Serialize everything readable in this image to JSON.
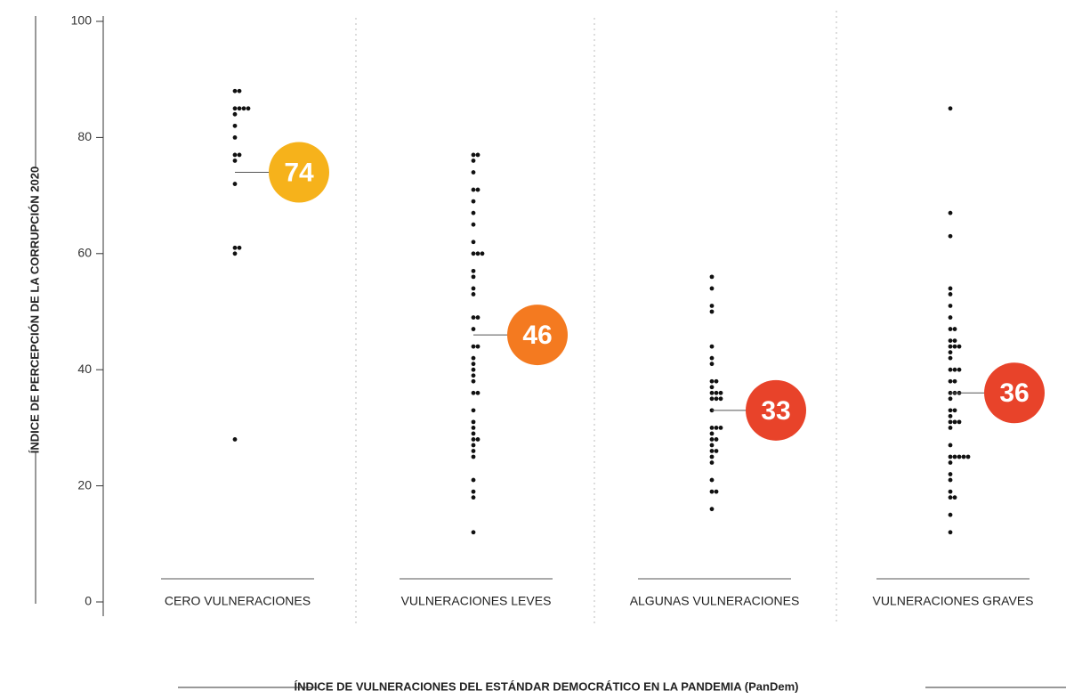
{
  "chart_data": {
    "type": "strip",
    "y_label": "ÍNDICE DE PERCEPCIÓN DE LA CORRUPCIÓN 2020",
    "x_label": "ÍNDICE DE VULNERACIONES DEL ESTÁNDAR DEMOCRÁTICO EN LA PANDEMIA (PanDem)",
    "categories": [
      "CERO VULNERACIONES",
      "VULNERACIONES LEVES",
      "ALGUNAS VULNERACIONES",
      "VULNERACIONES GRAVES"
    ],
    "points": [
      [
        88,
        88,
        85,
        85,
        85,
        85,
        84,
        82,
        80,
        77,
        77,
        76,
        72,
        61,
        61,
        60,
        28
      ],
      [
        77,
        77,
        76,
        74,
        71,
        71,
        69,
        67,
        65,
        62,
        60,
        60,
        60,
        57,
        56,
        54,
        53,
        49,
        49,
        47,
        44,
        44,
        42,
        41,
        40,
        39,
        38,
        36,
        36,
        33,
        31,
        30,
        29,
        28,
        28,
        27,
        26,
        25,
        21,
        19,
        18,
        12
      ],
      [
        56,
        54,
        51,
        50,
        44,
        42,
        41,
        38,
        38,
        37,
        36,
        36,
        36,
        35,
        35,
        35,
        33,
        30,
        30,
        30,
        29,
        28,
        28,
        27,
        26,
        26,
        25,
        24,
        21,
        19,
        19,
        16
      ],
      [
        85,
        67,
        63,
        54,
        53,
        51,
        49,
        47,
        47,
        45,
        45,
        44,
        44,
        44,
        43,
        42,
        40,
        40,
        40,
        38,
        38,
        36,
        36,
        36,
        35,
        33,
        33,
        32,
        31,
        31,
        31,
        30,
        27,
        25,
        25,
        25,
        25,
        25,
        24,
        22,
        21,
        19,
        18,
        18,
        15,
        12
      ]
    ],
    "means": [
      74,
      46,
      33,
      36
    ],
    "mean_colors": [
      "#f6b21b",
      "#f47a20",
      "#e8432a",
      "#e8432a"
    ],
    "dot_color": "#111111",
    "ylim": [
      0,
      100
    ],
    "yticks": [
      0,
      20,
      40,
      60,
      80,
      100
    ]
  }
}
